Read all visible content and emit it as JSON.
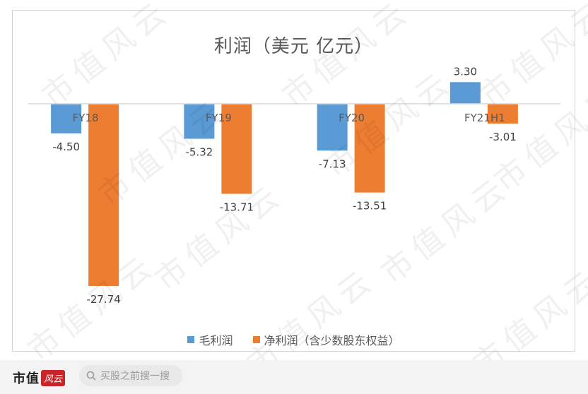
{
  "chart_data": {
    "type": "bar",
    "title": "利润（美元 亿元）",
    "categories": [
      "FY18",
      "FY19",
      "FY20",
      "FY21H1"
    ],
    "series": [
      {
        "name": "毛利润",
        "values": [
          -4.5,
          -5.32,
          -7.13,
          3.3
        ],
        "color": "#5b9bd5"
      },
      {
        "name": "净利润（含少数股东权益）",
        "values": [
          -27.74,
          -13.71,
          -13.51,
          -3.01
        ],
        "color": "#ed7d31"
      }
    ],
    "data_labels": [
      [
        "-4.50",
        "-5.32",
        "-7.13",
        "3.30"
      ],
      [
        "-27.74",
        "-13.71",
        "-13.51",
        "-3.01"
      ]
    ],
    "ylim": [
      -28.5,
      3.5
    ],
    "grid": false,
    "legend_position": "bottom"
  },
  "watermark": {
    "text": "市值风云"
  },
  "footer": {
    "brand_text": "市值",
    "brand_seal": "风云",
    "search_placeholder": "买股之前搜一搜"
  }
}
